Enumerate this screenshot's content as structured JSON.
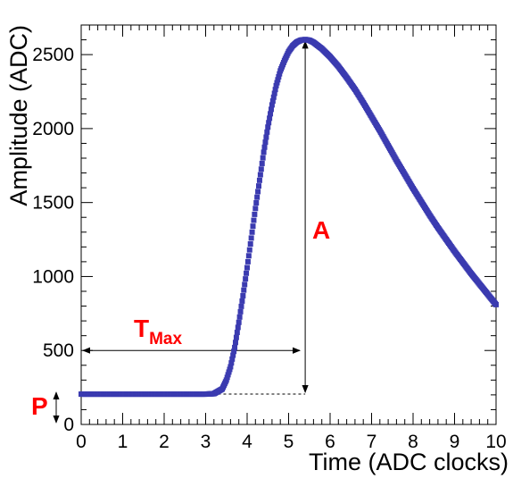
{
  "chart_data": {
    "type": "scatter",
    "title": "",
    "xlabel": "Time (ADC clocks)",
    "ylabel": "Amplitude (ADC)",
    "xlim": [
      0,
      10
    ],
    "ylim": [
      0,
      2700
    ],
    "grid": false,
    "legend": "none",
    "x_ticks": [
      "0",
      "1",
      "2",
      "3",
      "4",
      "5",
      "6",
      "7",
      "8",
      "9",
      "10"
    ],
    "y_ticks": [
      "0",
      "500",
      "1000",
      "1500",
      "2000",
      "2500"
    ],
    "y_tick_values": [
      0,
      500,
      1000,
      1500,
      2000,
      2500
    ],
    "series": [
      {
        "marker_color": "#3b3bb0",
        "points": [
          [
            0.0,
            205
          ],
          [
            0.5,
            205
          ],
          [
            1.0,
            205
          ],
          [
            1.5,
            205
          ],
          [
            2.0,
            205
          ],
          [
            2.5,
            205
          ],
          [
            3.0,
            205
          ],
          [
            3.2,
            208
          ],
          [
            3.4,
            240
          ],
          [
            3.5,
            300
          ],
          [
            3.6,
            390
          ],
          [
            3.7,
            520
          ],
          [
            3.8,
            690
          ],
          [
            3.9,
            870
          ],
          [
            4.0,
            1060
          ],
          [
            4.1,
            1260
          ],
          [
            4.2,
            1460
          ],
          [
            4.3,
            1650
          ],
          [
            4.4,
            1840
          ],
          [
            4.5,
            2010
          ],
          [
            4.6,
            2160
          ],
          [
            4.7,
            2290
          ],
          [
            4.8,
            2390
          ],
          [
            4.9,
            2460
          ],
          [
            5.0,
            2520
          ],
          [
            5.1,
            2560
          ],
          [
            5.2,
            2585
          ],
          [
            5.3,
            2598
          ],
          [
            5.4,
            2602
          ],
          [
            5.5,
            2597
          ],
          [
            5.6,
            2583
          ],
          [
            5.8,
            2540
          ],
          [
            6.0,
            2485
          ],
          [
            6.2,
            2420
          ],
          [
            6.4,
            2345
          ],
          [
            6.6,
            2265
          ],
          [
            6.8,
            2175
          ],
          [
            7.0,
            2080
          ],
          [
            7.2,
            1985
          ],
          [
            7.4,
            1885
          ],
          [
            7.6,
            1785
          ],
          [
            7.8,
            1690
          ],
          [
            8.0,
            1595
          ],
          [
            8.2,
            1505
          ],
          [
            8.4,
            1415
          ],
          [
            8.6,
            1330
          ],
          [
            8.8,
            1250
          ],
          [
            9.0,
            1170
          ],
          [
            9.2,
            1095
          ],
          [
            9.4,
            1020
          ],
          [
            9.6,
            950
          ],
          [
            9.8,
            880
          ],
          [
            10.0,
            810
          ]
        ]
      }
    ],
    "annotations": {
      "tmax_label": "T",
      "tmax_sub": "Max",
      "amplitude_label": "A",
      "pedestal_label": "P",
      "annotation_color": "#ff0000",
      "tmax_value": 5.4,
      "tmax_arrow_level": 500,
      "peak_amplitude": 2602,
      "pedestal_level": 205
    }
  }
}
